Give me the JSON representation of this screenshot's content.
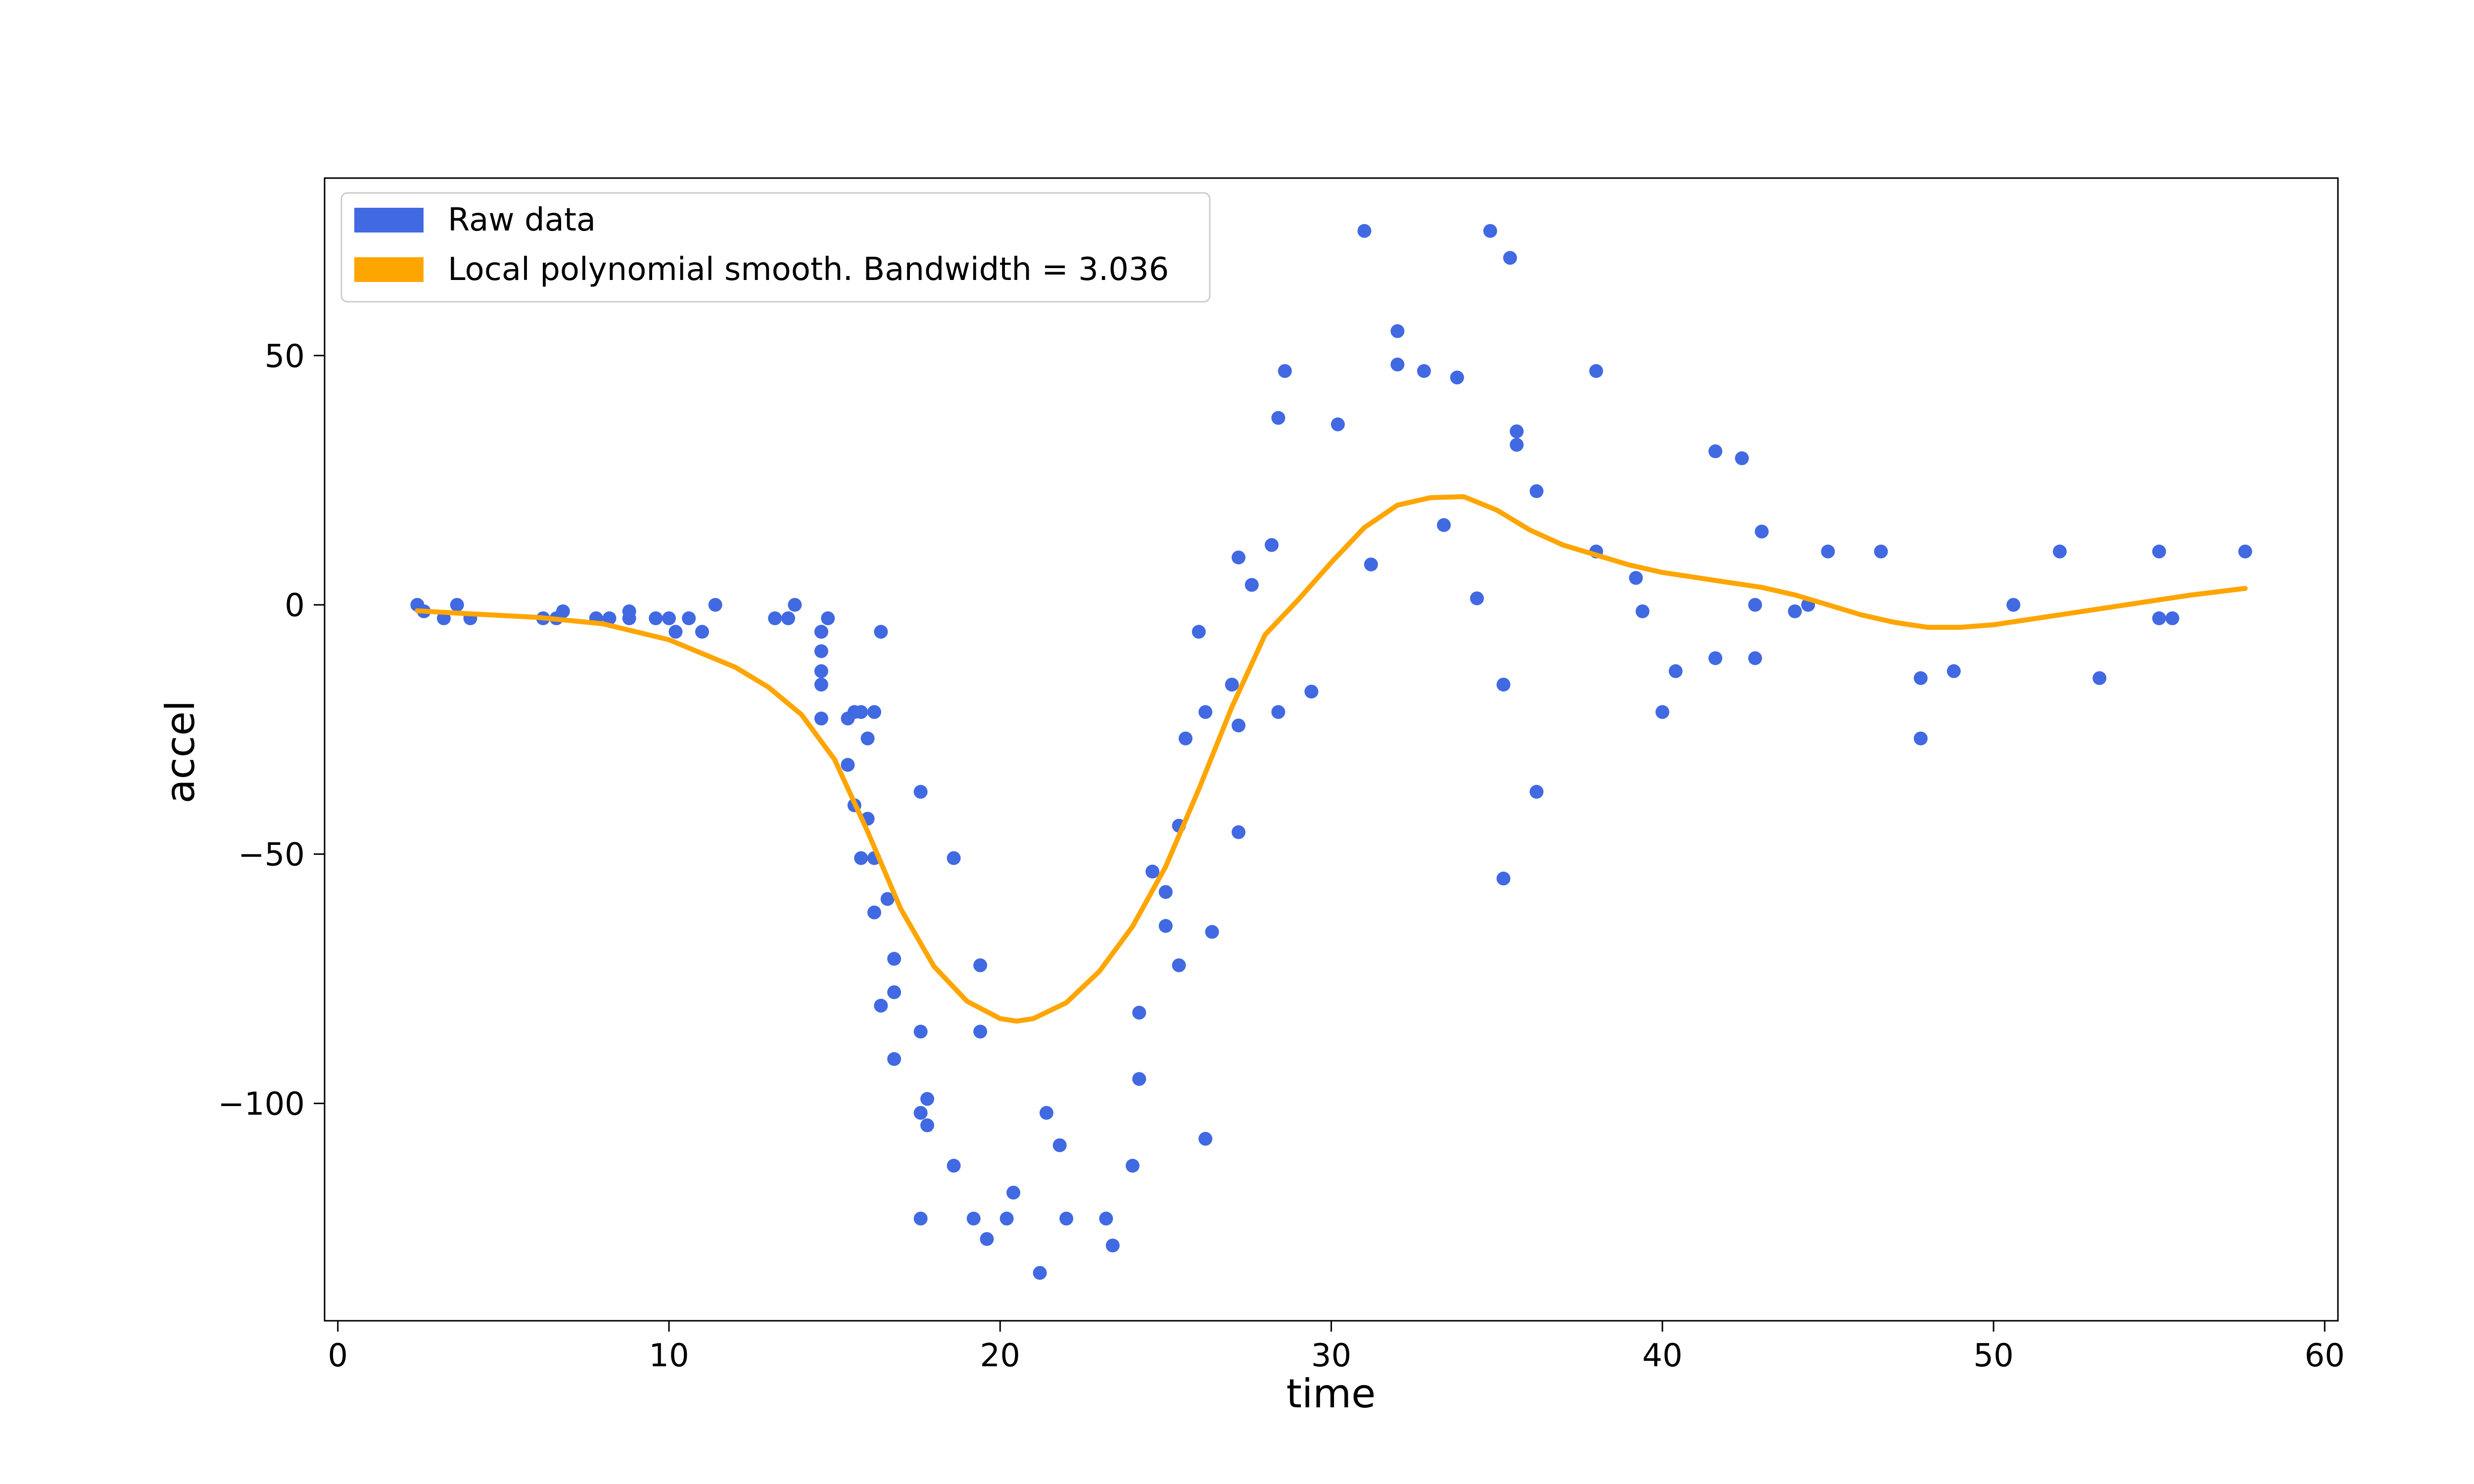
{
  "chart_data": {
    "type": "scatter",
    "title": "",
    "xlabel": "time",
    "ylabel": "accel",
    "xlim": [
      -0.4,
      60.4
    ],
    "ylim": [
      -143.6,
      85.6
    ],
    "xticks": [
      0,
      10,
      20,
      30,
      40,
      50,
      60
    ],
    "xtick_labels": [
      "0",
      "10",
      "20",
      "30",
      "40",
      "50",
      "60"
    ],
    "yticks": [
      -100,
      -50,
      0,
      50
    ],
    "ytick_labels": [
      "−100",
      "−50",
      "0",
      "50"
    ],
    "grid": false,
    "legend_position": "top-left",
    "series": [
      {
        "name": "Raw data",
        "kind": "scatter",
        "color": "#4169e1",
        "points": [
          [
            2.4,
            0.0
          ],
          [
            2.6,
            -1.3
          ],
          [
            3.2,
            -2.7
          ],
          [
            3.6,
            0.0
          ],
          [
            4.0,
            -2.7
          ],
          [
            6.2,
            -2.7
          ],
          [
            6.6,
            -2.7
          ],
          [
            6.8,
            -1.3
          ],
          [
            7.8,
            -2.7
          ],
          [
            8.2,
            -2.7
          ],
          [
            8.8,
            -1.3
          ],
          [
            8.8,
            -2.7
          ],
          [
            9.6,
            -2.7
          ],
          [
            10.0,
            -2.7
          ],
          [
            10.2,
            -5.4
          ],
          [
            10.6,
            -2.7
          ],
          [
            11.0,
            -5.4
          ],
          [
            11.4,
            0.0
          ],
          [
            13.2,
            -2.7
          ],
          [
            13.6,
            -2.7
          ],
          [
            13.8,
            0.0
          ],
          [
            14.6,
            -13.3
          ],
          [
            14.6,
            -5.4
          ],
          [
            14.6,
            -5.4
          ],
          [
            14.6,
            -9.3
          ],
          [
            14.6,
            -16.0
          ],
          [
            14.6,
            -22.8
          ],
          [
            14.8,
            -2.7
          ],
          [
            15.4,
            -22.8
          ],
          [
            15.4,
            -32.1
          ],
          [
            15.6,
            -21.5
          ],
          [
            15.6,
            -40.2
          ],
          [
            15.8,
            -21.5
          ],
          [
            15.8,
            -50.8
          ],
          [
            16.0,
            -42.9
          ],
          [
            16.0,
            -26.8
          ],
          [
            16.2,
            -61.7
          ],
          [
            16.2,
            -21.5
          ],
          [
            16.2,
            -50.8
          ],
          [
            16.4,
            -5.4
          ],
          [
            16.4,
            -80.4
          ],
          [
            16.6,
            -59.0
          ],
          [
            16.8,
            -71.0
          ],
          [
            16.8,
            -91.1
          ],
          [
            16.8,
            -77.7
          ],
          [
            17.6,
            -37.5
          ],
          [
            17.6,
            -85.6
          ],
          [
            17.6,
            -123.1
          ],
          [
            17.6,
            -101.9
          ],
          [
            17.8,
            -99.1
          ],
          [
            17.8,
            -104.4
          ],
          [
            18.6,
            -112.5
          ],
          [
            18.6,
            -50.8
          ],
          [
            19.2,
            -123.1
          ],
          [
            19.4,
            -85.6
          ],
          [
            19.4,
            -72.3
          ],
          [
            19.6,
            -127.2
          ],
          [
            20.2,
            -123.1
          ],
          [
            20.4,
            -117.9
          ],
          [
            21.2,
            -134.0
          ],
          [
            21.4,
            -101.9
          ],
          [
            21.8,
            -108.4
          ],
          [
            22.0,
            -123.1
          ],
          [
            23.2,
            -123.1
          ],
          [
            23.4,
            -128.5
          ],
          [
            24.0,
            -112.5
          ],
          [
            24.2,
            -95.1
          ],
          [
            24.2,
            -81.8
          ],
          [
            24.6,
            -53.5
          ],
          [
            25.0,
            -64.4
          ],
          [
            25.0,
            -57.6
          ],
          [
            25.4,
            -72.3
          ],
          [
            25.4,
            -44.3
          ],
          [
            25.6,
            -26.8
          ],
          [
            26.0,
            -5.4
          ],
          [
            26.2,
            -107.1
          ],
          [
            26.2,
            -21.5
          ],
          [
            26.4,
            -65.6
          ],
          [
            27.0,
            -16.0
          ],
          [
            27.2,
            -45.6
          ],
          [
            27.2,
            -24.2
          ],
          [
            27.2,
            9.5
          ],
          [
            27.6,
            4.0
          ],
          [
            28.2,
            12.0
          ],
          [
            28.4,
            -21.5
          ],
          [
            28.4,
            37.5
          ],
          [
            28.6,
            46.9
          ],
          [
            29.4,
            -17.4
          ],
          [
            30.2,
            36.2
          ],
          [
            31.0,
            75.0
          ],
          [
            31.2,
            8.1
          ],
          [
            32.0,
            54.9
          ],
          [
            32.0,
            48.2
          ],
          [
            32.8,
            46.9
          ],
          [
            33.4,
            16.0
          ],
          [
            33.8,
            45.6
          ],
          [
            34.4,
            1.3
          ],
          [
            34.8,
            75.0
          ],
          [
            35.2,
            -16.0
          ],
          [
            35.2,
            -54.9
          ],
          [
            35.4,
            69.6
          ],
          [
            35.6,
            34.8
          ],
          [
            35.6,
            32.1
          ],
          [
            36.2,
            22.8
          ],
          [
            36.2,
            -37.5
          ],
          [
            38.0,
            46.9
          ],
          [
            38.0,
            10.7
          ],
          [
            39.2,
            5.4
          ],
          [
            39.4,
            -1.3
          ],
          [
            40.0,
            -21.5
          ],
          [
            40.4,
            -13.3
          ],
          [
            41.6,
            30.8
          ],
          [
            41.6,
            -10.7
          ],
          [
            42.4,
            29.4
          ],
          [
            42.8,
            0.0
          ],
          [
            42.8,
            -10.7
          ],
          [
            43.0,
            14.7
          ],
          [
            44.0,
            -1.3
          ],
          [
            44.4,
            0.0
          ],
          [
            45.0,
            10.7
          ],
          [
            46.6,
            10.7
          ],
          [
            47.8,
            -26.8
          ],
          [
            47.8,
            -14.7
          ],
          [
            48.8,
            -13.3
          ],
          [
            50.6,
            0.0
          ],
          [
            52.0,
            10.7
          ],
          [
            53.2,
            -14.7
          ],
          [
            55.0,
            -2.7
          ],
          [
            55.0,
            10.7
          ],
          [
            55.4,
            -2.7
          ],
          [
            57.6,
            10.7
          ]
        ]
      },
      {
        "name": "Local polynomial smooth. Bandwidth = 3.036",
        "kind": "line",
        "color": "#ffa500",
        "points": [
          [
            2.4,
            -1.2
          ],
          [
            4.0,
            -1.8
          ],
          [
            6.0,
            -2.5
          ],
          [
            8.0,
            -3.8
          ],
          [
            10.0,
            -7.0
          ],
          [
            12.0,
            -12.5
          ],
          [
            13.0,
            -16.5
          ],
          [
            14.0,
            -22.0
          ],
          [
            15.0,
            -31.0
          ],
          [
            16.0,
            -45.5
          ],
          [
            17.0,
            -61.0
          ],
          [
            18.0,
            -72.5
          ],
          [
            19.0,
            -79.5
          ],
          [
            20.0,
            -83.0
          ],
          [
            20.5,
            -83.5
          ],
          [
            21.0,
            -83.0
          ],
          [
            22.0,
            -79.8
          ],
          [
            23.0,
            -73.5
          ],
          [
            24.0,
            -64.5
          ],
          [
            25.0,
            -52.5
          ],
          [
            26.0,
            -37.0
          ],
          [
            27.0,
            -20.5
          ],
          [
            28.0,
            -6.0
          ],
          [
            29.0,
            1.0
          ],
          [
            30.0,
            8.5
          ],
          [
            31.0,
            15.5
          ],
          [
            32.0,
            20.0
          ],
          [
            33.0,
            21.5
          ],
          [
            34.0,
            21.7
          ],
          [
            35.0,
            19.0
          ],
          [
            36.0,
            15.0
          ],
          [
            37.0,
            12.0
          ],
          [
            38.0,
            10.0
          ],
          [
            39.0,
            8.0
          ],
          [
            40.0,
            6.5
          ],
          [
            41.0,
            5.5
          ],
          [
            42.0,
            4.5
          ],
          [
            43.0,
            3.5
          ],
          [
            44.0,
            2.0
          ],
          [
            45.0,
            0.0
          ],
          [
            46.0,
            -2.0
          ],
          [
            47.0,
            -3.5
          ],
          [
            48.0,
            -4.5
          ],
          [
            49.0,
            -4.5
          ],
          [
            50.0,
            -4.0
          ],
          [
            51.0,
            -3.0
          ],
          [
            52.0,
            -2.0
          ],
          [
            53.0,
            -1.0
          ],
          [
            54.0,
            0.0
          ],
          [
            55.0,
            1.0
          ],
          [
            56.0,
            2.0
          ],
          [
            57.6,
            3.3
          ]
        ]
      }
    ]
  }
}
